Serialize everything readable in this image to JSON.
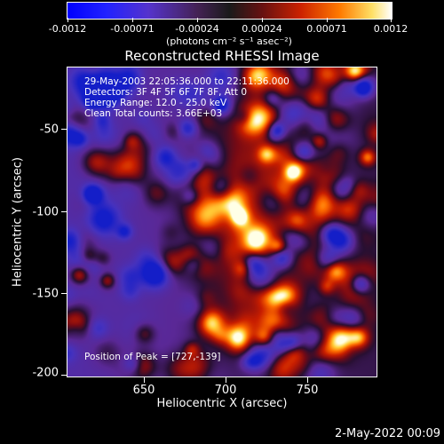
{
  "colorbar": {
    "ticks": [
      "-0.0012",
      "-0.00071",
      "-0.00024",
      "0.00024",
      "0.00071",
      "0.0012"
    ],
    "units": "(photons cm⁻² s⁻¹ asec⁻²)"
  },
  "title": "Reconstructed RHESSI Image",
  "annotations": {
    "time": "29-May-2003 22:05:36.000 to 22:11:36.000",
    "detectors": "Detectors: 3F 4F 5F 6F 7F 8F, Att 0",
    "energy": "Energy Range: 12.0 - 25.0 keV",
    "clean": "Clean     Total counts: 3.66E+03",
    "peak": "Position of Peak = [727,-139]"
  },
  "chart_data": {
    "type": "heatmap",
    "title": "Reconstructed RHESSI Image",
    "xlabel": "Heliocentric X (arcsec)",
    "ylabel": "Heliocentric Y (arcsec)",
    "xlim": [
      602,
      792
    ],
    "ylim": [
      -204,
      -14
    ],
    "xticks": [
      "650",
      "700",
      "750"
    ],
    "yticks": [
      "-50",
      "-100",
      "-150",
      "-200"
    ],
    "colorbar_range": [
      -0.0012,
      0.0012
    ],
    "peak_position": [
      727,
      -139
    ]
  },
  "timestamp": "2-May-2022 00:09"
}
